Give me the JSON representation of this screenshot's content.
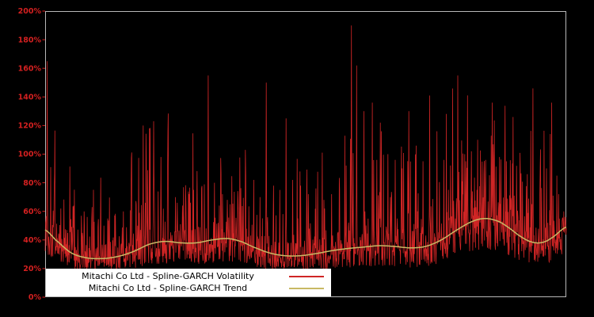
{
  "figure": {
    "background": "#000000",
    "plot_border_color": "#b8b8b8"
  },
  "axes": {
    "tick_color": "#d42020",
    "y_ticks": [
      "0%",
      "20%",
      "40%",
      "60%",
      "80%",
      "100%",
      "120%",
      "140%",
      "160%",
      "180%",
      "200%"
    ]
  },
  "legend": {
    "background": "#ffffff"
  },
  "chart_data": {
    "type": "line",
    "title": "",
    "xlabel": "",
    "ylabel": "",
    "ylim": [
      0,
      200
    ],
    "y_tick_step": 20,
    "grid": false,
    "legend_position": "bottom-left",
    "series": [
      {
        "name": "Mitachi Co Ltd - Spline-GARCH Volatility",
        "color": "#cf2525",
        "style": "spiky-noise",
        "approx_range_percent": [
          18,
          192
        ]
      },
      {
        "name": "Mitachi Co Ltd - Spline-GARCH Trend",
        "color": "#c8b964",
        "style": "smooth",
        "points": [
          [
            0.0,
            47
          ],
          [
            0.02,
            40
          ],
          [
            0.05,
            31
          ],
          [
            0.08,
            27.5
          ],
          [
            0.11,
            27
          ],
          [
            0.14,
            28.5
          ],
          [
            0.17,
            32
          ],
          [
            0.2,
            37
          ],
          [
            0.23,
            39
          ],
          [
            0.26,
            38
          ],
          [
            0.29,
            38
          ],
          [
            0.32,
            40
          ],
          [
            0.35,
            41
          ],
          [
            0.375,
            39
          ],
          [
            0.4,
            35
          ],
          [
            0.43,
            31
          ],
          [
            0.46,
            29
          ],
          [
            0.49,
            29
          ],
          [
            0.52,
            30.5
          ],
          [
            0.55,
            32.5
          ],
          [
            0.58,
            34
          ],
          [
            0.61,
            35
          ],
          [
            0.64,
            36
          ],
          [
            0.67,
            35.5
          ],
          [
            0.7,
            34.5
          ],
          [
            0.73,
            35.5
          ],
          [
            0.76,
            40
          ],
          [
            0.79,
            47
          ],
          [
            0.82,
            53
          ],
          [
            0.845,
            55
          ],
          [
            0.87,
            53
          ],
          [
            0.89,
            48.5
          ],
          [
            0.91,
            43
          ],
          [
            0.93,
            39
          ],
          [
            0.95,
            38
          ],
          [
            0.97,
            41
          ],
          [
            1.0,
            49
          ]
        ]
      }
    ],
    "volatility_profile": {
      "seed": 1337,
      "n_points": 1500,
      "baseline_follows": "trend",
      "min_percent": 17,
      "max_percent": 196,
      "major_spikes": [
        [
          0.004,
          165
        ],
        [
          0.018,
          86
        ],
        [
          0.03,
          62
        ],
        [
          0.055,
          64
        ],
        [
          0.075,
          60
        ],
        [
          0.09,
          63
        ],
        [
          0.12,
          55
        ],
        [
          0.15,
          60
        ],
        [
          0.165,
          72
        ],
        [
          0.175,
          65
        ],
        [
          0.188,
          120
        ],
        [
          0.2,
          118
        ],
        [
          0.208,
          123
        ],
        [
          0.222,
          98
        ],
        [
          0.235,
          86
        ],
        [
          0.25,
          70
        ],
        [
          0.27,
          65
        ],
        [
          0.285,
          75
        ],
        [
          0.3,
          76
        ],
        [
          0.313,
          155
        ],
        [
          0.325,
          80
        ],
        [
          0.34,
          72
        ],
        [
          0.355,
          65
        ],
        [
          0.37,
          68
        ],
        [
          0.385,
          85
        ],
        [
          0.4,
          82
        ],
        [
          0.412,
          70
        ],
        [
          0.424,
          150
        ],
        [
          0.438,
          78
        ],
        [
          0.45,
          75
        ],
        [
          0.462,
          125
        ],
        [
          0.475,
          82
        ],
        [
          0.49,
          78
        ],
        [
          0.505,
          72
        ],
        [
          0.52,
          76
        ],
        [
          0.535,
          68
        ],
        [
          0.55,
          72
        ],
        [
          0.565,
          75
        ],
        [
          0.578,
          92
        ],
        [
          0.588,
          190
        ],
        [
          0.598,
          162
        ],
        [
          0.612,
          130
        ],
        [
          0.628,
          136
        ],
        [
          0.643,
          122
        ],
        [
          0.658,
          100
        ],
        [
          0.672,
          96
        ],
        [
          0.685,
          90
        ],
        [
          0.698,
          130
        ],
        [
          0.712,
          106
        ],
        [
          0.725,
          95
        ],
        [
          0.738,
          141
        ],
        [
          0.752,
          116
        ],
        [
          0.765,
          96
        ],
        [
          0.778,
          92
        ],
        [
          0.792,
          155
        ],
        [
          0.805,
          100
        ],
        [
          0.818,
          102
        ],
        [
          0.83,
          110
        ],
        [
          0.845,
          96
        ],
        [
          0.858,
          136
        ],
        [
          0.872,
          98
        ],
        [
          0.885,
          95
        ],
        [
          0.898,
          126
        ],
        [
          0.912,
          82
        ],
        [
          0.925,
          86
        ],
        [
          0.936,
          146
        ],
        [
          0.95,
          92
        ],
        [
          0.962,
          90
        ],
        [
          0.972,
          136
        ],
        [
          0.985,
          72
        ],
        [
          0.995,
          60
        ]
      ]
    }
  }
}
